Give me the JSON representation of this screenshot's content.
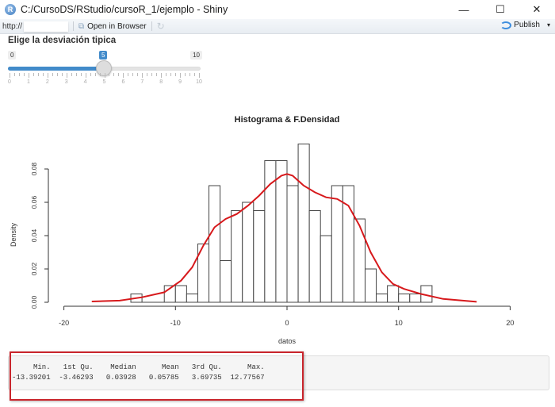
{
  "window": {
    "title": "C:/CursoDS/RStudio/cursoR_1/ejemplo - Shiny",
    "controls": {
      "minimize": "—",
      "maximize": "☐",
      "close": "✕"
    }
  },
  "toolbar": {
    "url_label": "http://",
    "url_value": "",
    "open_in_browser": "Open in Browser",
    "publish": "Publish",
    "publish_caret": "▾"
  },
  "slider": {
    "label": "Elige la desviación tipica",
    "min": "0",
    "max": "10",
    "value": "5",
    "tick_labels": [
      "0",
      "1",
      "2",
      "3",
      "4",
      "5",
      "6",
      "7",
      "8",
      "9",
      "10"
    ],
    "accent": "#428bca"
  },
  "chart_data": {
    "type": "bar",
    "title": "Histograma & F.Densidad",
    "xlabel": "datos",
    "ylabel": "Density",
    "xlim": [
      -20,
      20
    ],
    "ylim": [
      0,
      0.095
    ],
    "x_ticks": [
      "-20",
      "-10",
      "0",
      "10",
      "20"
    ],
    "y_ticks": [
      "0.00",
      "0.02",
      "0.04",
      "0.06",
      "0.08"
    ],
    "bin_width": 1,
    "bin_edges": [
      -14,
      -13,
      -12,
      -11,
      -10,
      -9,
      -8,
      -7,
      -6,
      -5,
      -4,
      -3,
      -2,
      -1,
      0,
      1,
      2,
      3,
      4,
      5,
      6,
      7,
      8,
      9,
      10,
      11,
      12,
      13
    ],
    "values": [
      0.005,
      0,
      0,
      0.01,
      0.01,
      0.005,
      0.035,
      0.07,
      0.025,
      0.055,
      0.06,
      0.055,
      0.085,
      0.085,
      0.07,
      0.095,
      0.055,
      0.04,
      0.07,
      0.07,
      0.05,
      0.02,
      0.005,
      0.01,
      0.005,
      0.005,
      0.01
    ],
    "density_curve": {
      "name": "F.Densidad",
      "color": "#d7191c",
      "x": [
        -17.5,
        -15,
        -13,
        -11,
        -9.5,
        -8.5,
        -7.5,
        -6.5,
        -5.5,
        -4.5,
        -3.5,
        -2.5,
        -1.5,
        -0.5,
        0,
        0.5,
        1.5,
        2.5,
        3.5,
        4.5,
        5.5,
        6.5,
        7.5,
        8.5,
        9.5,
        10.5,
        12,
        14,
        17
      ],
      "y": [
        0.0005,
        0.001,
        0.003,
        0.006,
        0.013,
        0.021,
        0.034,
        0.045,
        0.05,
        0.053,
        0.058,
        0.064,
        0.071,
        0.076,
        0.077,
        0.076,
        0.07,
        0.066,
        0.063,
        0.062,
        0.058,
        0.046,
        0.03,
        0.018,
        0.011,
        0.008,
        0.005,
        0.002,
        0.0003
      ]
    }
  },
  "summary": {
    "headers": [
      "Min.",
      "1st Qu.",
      "Median",
      "Mean",
      "3rd Qu.",
      "Max."
    ],
    "values": [
      "-13.39201",
      "-3.46293",
      "0.03928",
      "0.05785",
      "3.69735",
      "12.77567"
    ],
    "header_line": "     Min.   1st Qu.    Median      Mean   3rd Qu.      Max. ",
    "value_line": "-13.39201  -3.46293   0.03928   0.05785   3.69735  12.77567 ",
    "highlight_color": "#c9252c"
  }
}
